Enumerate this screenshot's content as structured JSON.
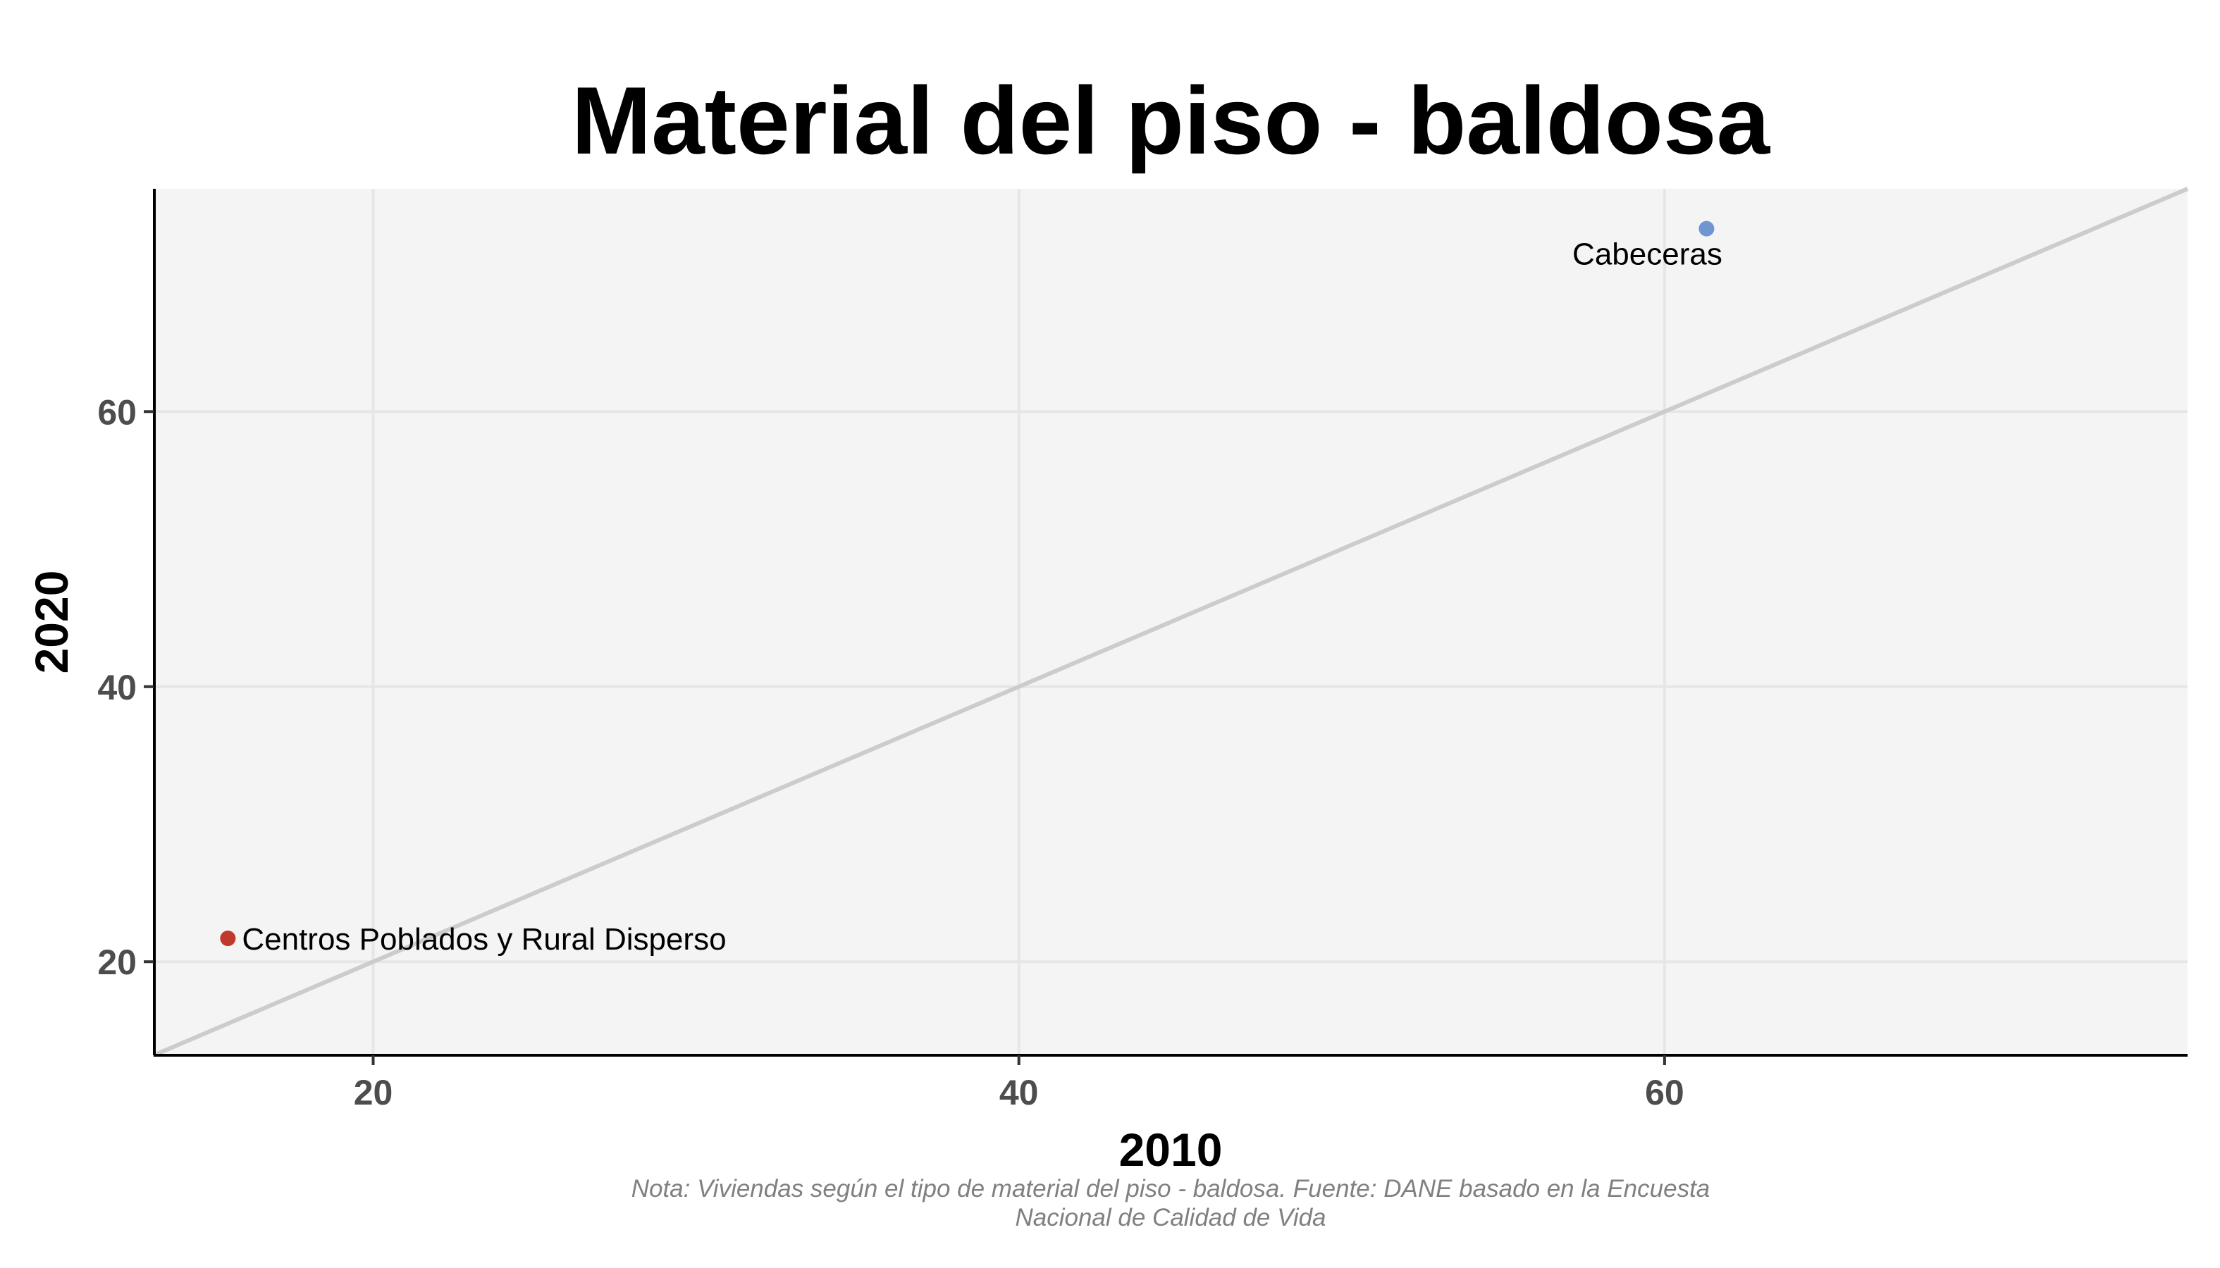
{
  "chart_data": {
    "type": "scatter",
    "title": "Material del piso - baldosa",
    "xlabel": "2010",
    "ylabel": "2020",
    "caption": [
      "Nota: Viviendas según el tipo de material del piso - baldosa. Fuente: DANE basado en la Encuesta",
      "Nacional de Calidad de Vida"
    ],
    "xlim": [
      13.2,
      76.2
    ],
    "ylim": [
      13.2,
      76.2
    ],
    "xticks": [
      20,
      40,
      60
    ],
    "yticks": [
      20,
      40,
      60
    ],
    "grid": true,
    "reference_line": "y = x",
    "points": [
      {
        "label": "Centros Poblados y Rural Disperso",
        "x": 15.5,
        "y": 21.7,
        "color": "#c0392b"
      },
      {
        "label": "Cabeceras",
        "x": 61.3,
        "y": 73.3,
        "color": "#7096d1"
      }
    ]
  },
  "colors": {
    "panel_background": "#f4f4f4",
    "grid": "#e6e6e6",
    "reference_line": "#cccccc",
    "axis_line": "#000000"
  }
}
